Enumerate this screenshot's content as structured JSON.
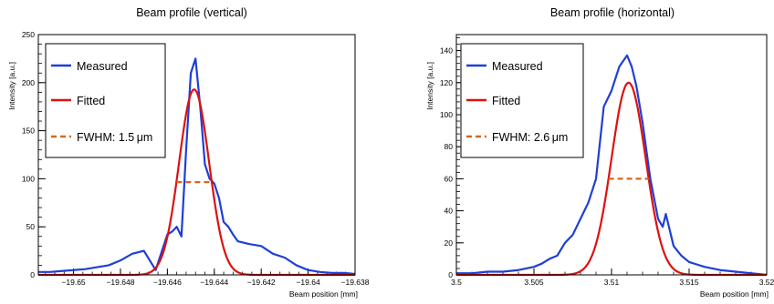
{
  "chart_data": [
    {
      "type": "line",
      "title": "Beam profile (vertical)",
      "xlabel": "Beam position [mm]",
      "ylabel": "Intensity [a.u.]",
      "xlim": [
        -19.6515,
        -19.638
      ],
      "ylim": [
        0,
        250
      ],
      "x_ticks": [
        -19.65,
        -19.648,
        -19.646,
        -19.644,
        -19.642,
        -19.64,
        -19.638
      ],
      "x_tick_labels": [
        "−19.65",
        "−19.648",
        "−19.646",
        "−19.644",
        "−19.642",
        "−19.64",
        "−19.638"
      ],
      "y_ticks": [
        0,
        50,
        100,
        150,
        200,
        250
      ],
      "y_tick_labels": [
        "0",
        "50",
        "100",
        "150",
        "200",
        "250"
      ],
      "grid": false,
      "legend_position": "top-left",
      "legend": [
        {
          "label": "Measured",
          "color": "#1f3fd6",
          "style": "solid"
        },
        {
          "label": "Fitted",
          "color": "#dd1111",
          "style": "solid"
        },
        {
          "label": "FWHM: 1.5 μm",
          "color": "#d2691e",
          "style": "dashed"
        }
      ],
      "series": [
        {
          "name": "Measured",
          "color": "#1f3fd6",
          "x": [
            -19.6515,
            -19.651,
            -19.6505,
            -19.65,
            -19.6495,
            -19.649,
            -19.6485,
            -19.648,
            -19.6475,
            -19.647,
            -19.6465,
            -19.646,
            -19.6458,
            -19.6456,
            -19.6454,
            -19.6452,
            -19.645,
            -19.6448,
            -19.6446,
            -19.6444,
            -19.6442,
            -19.644,
            -19.6438,
            -19.6436,
            -19.6434,
            -19.6432,
            -19.643,
            -19.6425,
            -19.642,
            -19.6415,
            -19.641,
            -19.6405,
            -19.64,
            -19.6395,
            -19.639,
            -19.6385,
            -19.638
          ],
          "y": [
            3,
            3,
            4,
            5,
            6,
            8,
            10,
            15,
            22,
            25,
            5,
            42,
            45,
            50,
            40,
            130,
            210,
            225,
            175,
            115,
            100,
            95,
            80,
            55,
            50,
            42,
            35,
            32,
            30,
            22,
            18,
            10,
            5,
            3,
            2,
            2,
            1
          ]
        },
        {
          "name": "Fitted",
          "color": "#dd1111",
          "type": "gaussian",
          "amplitude": 193,
          "mean": -19.64486,
          "sigma": 0.00064
        },
        {
          "name": "FWHM: 1.5 μm",
          "color": "#d2691e",
          "style": "dashed",
          "x": [
            -19.64561,
            -19.64411
          ],
          "y": [
            96.5,
            96.5
          ]
        }
      ]
    },
    {
      "type": "line",
      "title": "Beam profile (horizontal)",
      "xlabel": "Beam position [mm]",
      "ylabel": "Intensity [a.u.]",
      "xlim": [
        3.5,
        3.52
      ],
      "ylim": [
        0,
        150
      ],
      "x_ticks": [
        3.5,
        3.505,
        3.51,
        3.515,
        3.52
      ],
      "x_tick_labels": [
        "3.5",
        "3.505",
        "3.51",
        "3.515",
        "3.52"
      ],
      "y_ticks": [
        0,
        20,
        40,
        60,
        80,
        100,
        120,
        140
      ],
      "y_tick_labels": [
        "0",
        "20",
        "40",
        "60",
        "80",
        "100",
        "120",
        "140"
      ],
      "grid": false,
      "legend_position": "top-left",
      "legend": [
        {
          "label": "Measured",
          "color": "#1f3fd6",
          "style": "solid"
        },
        {
          "label": "Fitted",
          "color": "#dd1111",
          "style": "solid"
        },
        {
          "label": "FWHM: 2.6 μm",
          "color": "#d2691e",
          "style": "dashed"
        }
      ],
      "series": [
        {
          "name": "Measured",
          "color": "#1f3fd6",
          "x": [
            3.5,
            3.501,
            3.502,
            3.503,
            3.504,
            3.505,
            3.5055,
            3.506,
            3.5065,
            3.507,
            3.5075,
            3.508,
            3.5085,
            3.509,
            3.5095,
            3.51,
            3.5105,
            3.511,
            3.5113,
            3.5116,
            3.512,
            3.5125,
            3.513,
            3.5133,
            3.5135,
            3.514,
            3.5145,
            3.515,
            3.516,
            3.517,
            3.518,
            3.519,
            3.52
          ],
          "y": [
            1,
            1,
            2,
            2,
            3,
            5,
            7,
            10,
            12,
            20,
            25,
            35,
            45,
            60,
            105,
            115,
            130,
            137,
            130,
            118,
            95,
            60,
            35,
            30,
            38,
            18,
            12,
            8,
            5,
            3,
            2,
            1,
            0
          ]
        },
        {
          "name": "Fitted",
          "color": "#dd1111",
          "type": "gaussian",
          "amplitude": 120,
          "mean": 3.5111,
          "sigma": 0.0011
        },
        {
          "name": "FWHM: 2.6 μm",
          "color": "#d2691e",
          "style": "dashed",
          "x": [
            3.5098,
            3.5124
          ],
          "y": [
            60,
            60
          ]
        }
      ]
    }
  ]
}
